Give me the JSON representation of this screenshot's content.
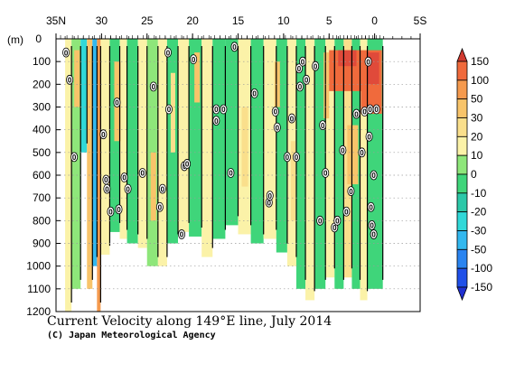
{
  "chart_data": {
    "type": "heatmap",
    "title": "Current Velocity along 149°E line, July 2014",
    "credit": "(C) Japan Meteorological Agency",
    "x_axis": {
      "label_note": "latitude",
      "range": [
        35,
        -5
      ],
      "ticks": [
        {
          "value": 35,
          "label": "35N"
        },
        {
          "value": 30,
          "label": "30"
        },
        {
          "value": 25,
          "label": "25"
        },
        {
          "value": 20,
          "label": "20"
        },
        {
          "value": 15,
          "label": "15"
        },
        {
          "value": 10,
          "label": "10"
        },
        {
          "value": 5,
          "label": "5"
        },
        {
          "value": 0,
          "label": "0"
        },
        {
          "value": -5,
          "label": "5S"
        }
      ]
    },
    "y_axis": {
      "unit_label": "(m)",
      "range": [
        0,
        1200
      ],
      "ticks": [
        {
          "value": 0,
          "label": "0"
        },
        {
          "value": 100,
          "label": "100"
        },
        {
          "value": 200,
          "label": "200"
        },
        {
          "value": 300,
          "label": "300"
        },
        {
          "value": 400,
          "label": "400"
        },
        {
          "value": 500,
          "label": "500"
        },
        {
          "value": 600,
          "label": "600"
        },
        {
          "value": 700,
          "label": "700"
        },
        {
          "value": 800,
          "label": "800"
        },
        {
          "value": 900,
          "label": "900"
        },
        {
          "value": 1000,
          "label": "1000"
        },
        {
          "value": 1100,
          "label": "1100"
        },
        {
          "value": 1200,
          "label": "1200"
        }
      ]
    },
    "colorbar": {
      "levels": [
        {
          "label": "150",
          "color": "#e04a3a"
        },
        {
          "label": "100",
          "color": "#f06a3c"
        },
        {
          "label": "50",
          "color": "#f59a4e"
        },
        {
          "label": "30",
          "color": "#f8c46a"
        },
        {
          "label": "20",
          "color": "#fadf8c"
        },
        {
          "label": "10",
          "color": "#fbf2a8"
        },
        {
          "label": "0",
          "color": "#8ee67a"
        },
        {
          "label": "-10",
          "color": "#3fd57a"
        },
        {
          "label": "-20",
          "color": "#2bc8a8"
        },
        {
          "label": "-30",
          "color": "#30d8d8"
        },
        {
          "label": "-50",
          "color": "#32b8ef"
        },
        {
          "label": "-100",
          "color": "#2a84f0"
        },
        {
          "label": "-150",
          "color": "#2050e8"
        }
      ],
      "top_arrow_color": "#d03a30",
      "bottom_arrow_color": "#2030d0"
    },
    "bands": [
      {
        "lat": 34.0,
        "lat2": 33.3,
        "top": 0,
        "bottom": 1200,
        "v": 3
      },
      {
        "lat": 33.3,
        "lat2": 32.3,
        "top": 0,
        "bottom": 1100,
        "v": -8
      },
      {
        "lat": 32.3,
        "lat2": 31.6,
        "top": 0,
        "bottom": 500,
        "v": -40
      },
      {
        "lat": 31.6,
        "lat2": 31.0,
        "top": 0,
        "bottom": 1100,
        "v": 25
      },
      {
        "lat": 31.0,
        "lat2": 30.5,
        "top": 0,
        "bottom": 1000,
        "v": -60
      },
      {
        "lat": 30.5,
        "lat2": 30.1,
        "top": 0,
        "bottom": 1200,
        "v": 40
      },
      {
        "lat": 30.1,
        "lat2": 29.1,
        "top": 0,
        "bottom": 950,
        "v": 8
      },
      {
        "lat": 29.1,
        "lat2": 28.0,
        "top": 0,
        "bottom": 850,
        "v": -12
      },
      {
        "lat": 28.0,
        "lat2": 27.2,
        "top": 0,
        "bottom": 880,
        "v": 5
      },
      {
        "lat": 27.2,
        "lat2": 26.0,
        "top": 0,
        "bottom": 900,
        "v": -15
      },
      {
        "lat": 26.0,
        "lat2": 25.0,
        "top": 0,
        "bottom": 920,
        "v": 6
      },
      {
        "lat": 25.0,
        "lat2": 23.8,
        "top": 0,
        "bottom": 1000,
        "v": -10
      },
      {
        "lat": 23.8,
        "lat2": 22.8,
        "top": 0,
        "bottom": 1000,
        "v": 4
      },
      {
        "lat": 22.8,
        "lat2": 21.6,
        "top": 0,
        "bottom": 900,
        "v": -14
      },
      {
        "lat": 21.6,
        "lat2": 20.4,
        "top": 0,
        "bottom": 850,
        "v": 7
      },
      {
        "lat": 20.4,
        "lat2": 19.0,
        "top": 0,
        "bottom": 870,
        "v": -16
      },
      {
        "lat": 19.0,
        "lat2": 17.8,
        "top": 0,
        "bottom": 960,
        "v": 5
      },
      {
        "lat": 17.8,
        "lat2": 16.4,
        "top": 0,
        "bottom": 880,
        "v": -12
      },
      {
        "lat": 16.4,
        "lat2": 15.0,
        "top": 0,
        "bottom": 820,
        "v": -18
      },
      {
        "lat": 15.0,
        "lat2": 13.6,
        "top": 0,
        "bottom": 860,
        "v": 6
      },
      {
        "lat": 13.6,
        "lat2": 12.2,
        "top": 0,
        "bottom": 900,
        "v": -12
      },
      {
        "lat": 12.2,
        "lat2": 10.8,
        "top": 0,
        "bottom": 880,
        "v": 5
      },
      {
        "lat": 10.8,
        "lat2": 9.6,
        "top": 0,
        "bottom": 940,
        "v": -14
      },
      {
        "lat": 9.6,
        "lat2": 8.6,
        "top": 0,
        "bottom": 1000,
        "v": 8
      },
      {
        "lat": 8.6,
        "lat2": 7.6,
        "top": 0,
        "bottom": 1100,
        "v": -16
      },
      {
        "lat": 7.6,
        "lat2": 6.6,
        "top": 0,
        "bottom": 1150,
        "v": 6
      },
      {
        "lat": 6.6,
        "lat2": 5.4,
        "top": 0,
        "bottom": 1100,
        "v": -12
      },
      {
        "lat": 5.4,
        "lat2": 4.4,
        "top": 0,
        "bottom": 1050,
        "v": 7
      },
      {
        "lat": 4.4,
        "lat2": 3.4,
        "top": 0,
        "bottom": 1100,
        "v": -14
      },
      {
        "lat": 3.4,
        "lat2": 2.5,
        "top": 0,
        "bottom": 1050,
        "v": 10
      },
      {
        "lat": 2.5,
        "lat2": 1.6,
        "top": 0,
        "bottom": 1100,
        "v": -12
      },
      {
        "lat": 1.6,
        "lat2": 0.8,
        "top": 0,
        "bottom": 1150,
        "v": 6
      },
      {
        "lat": 0.8,
        "lat2": -0.9,
        "top": 0,
        "bottom": 1100,
        "v": -15
      }
    ],
    "patches": [
      {
        "lat": 33.0,
        "lat2": 32.4,
        "top": 50,
        "bottom": 300,
        "v": 25
      },
      {
        "lat": 28.6,
        "lat2": 27.9,
        "top": 100,
        "bottom": 450,
        "v": 25
      },
      {
        "lat": 22.4,
        "lat2": 21.9,
        "top": 150,
        "bottom": 500,
        "v": 15
      },
      {
        "lat": 19.8,
        "lat2": 19.2,
        "top": 60,
        "bottom": 280,
        "v": 25
      },
      {
        "lat": 14.6,
        "lat2": 13.9,
        "top": 300,
        "bottom": 650,
        "v": 15
      },
      {
        "lat": 11.0,
        "lat2": 10.4,
        "top": 100,
        "bottom": 300,
        "v": 20
      },
      {
        "lat": 9.2,
        "lat2": 8.7,
        "top": 450,
        "bottom": 800,
        "v": 15
      },
      {
        "lat": 5.6,
        "lat2": 5.0,
        "top": 60,
        "bottom": 350,
        "v": 25
      },
      {
        "lat": 5.0,
        "lat2": 1.5,
        "top": 50,
        "bottom": 230,
        "v": 70
      },
      {
        "lat": 4.0,
        "lat2": 2.0,
        "top": 50,
        "bottom": 120,
        "v": 120
      },
      {
        "lat": 1.5,
        "lat2": -0.8,
        "top": 50,
        "bottom": 330,
        "v": 60
      },
      {
        "lat": 0.8,
        "lat2": -0.5,
        "top": 60,
        "bottom": 200,
        "v": 110
      },
      {
        "lat": 3.0,
        "lat2": 1.8,
        "top": 380,
        "bottom": 640,
        "v": 25
      },
      {
        "lat": 24.6,
        "lat2": 24.0,
        "top": 500,
        "bottom": 800,
        "v": 20
      }
    ],
    "zero_labels": [
      {
        "lat": 33.9,
        "depth": 60
      },
      {
        "lat": 33.5,
        "depth": 180
      },
      {
        "lat": 33.0,
        "depth": 520
      },
      {
        "lat": 29.8,
        "depth": 420
      },
      {
        "lat": 29.5,
        "depth": 620
      },
      {
        "lat": 29.4,
        "depth": 660
      },
      {
        "lat": 29.0,
        "depth": 760
      },
      {
        "lat": 28.3,
        "depth": 280
      },
      {
        "lat": 28.1,
        "depth": 750
      },
      {
        "lat": 27.5,
        "depth": 610
      },
      {
        "lat": 27.1,
        "depth": 660
      },
      {
        "lat": 25.5,
        "depth": 590
      },
      {
        "lat": 24.3,
        "depth": 210
      },
      {
        "lat": 23.6,
        "depth": 740
      },
      {
        "lat": 23.3,
        "depth": 660
      },
      {
        "lat": 22.7,
        "depth": 60
      },
      {
        "lat": 22.6,
        "depth": 310
      },
      {
        "lat": 21.2,
        "depth": 860
      },
      {
        "lat": 20.9,
        "depth": 560
      },
      {
        "lat": 20.6,
        "depth": 550
      },
      {
        "lat": 19.9,
        "depth": 90
      },
      {
        "lat": 17.4,
        "depth": 310
      },
      {
        "lat": 17.4,
        "depth": 360
      },
      {
        "lat": 16.6,
        "depth": 310
      },
      {
        "lat": 15.8,
        "depth": 590
      },
      {
        "lat": 15.4,
        "depth": 35
      },
      {
        "lat": 13.2,
        "depth": 240
      },
      {
        "lat": 11.6,
        "depth": 720
      },
      {
        "lat": 11.5,
        "depth": 690
      },
      {
        "lat": 10.9,
        "depth": 320
      },
      {
        "lat": 10.7,
        "depth": 390
      },
      {
        "lat": 9.6,
        "depth": 520
      },
      {
        "lat": 9.1,
        "depth": 350
      },
      {
        "lat": 8.6,
        "depth": 520
      },
      {
        "lat": 8.3,
        "depth": 130
      },
      {
        "lat": 8.2,
        "depth": 210
      },
      {
        "lat": 7.9,
        "depth": 100
      },
      {
        "lat": 7.5,
        "depth": 180
      },
      {
        "lat": 6.5,
        "depth": 120
      },
      {
        "lat": 6.0,
        "depth": 800
      },
      {
        "lat": 5.7,
        "depth": 380
      },
      {
        "lat": 5.4,
        "depth": 590
      },
      {
        "lat": 4.4,
        "depth": 830
      },
      {
        "lat": 4.1,
        "depth": 800
      },
      {
        "lat": 3.5,
        "depth": 490
      },
      {
        "lat": 3.1,
        "depth": 760
      },
      {
        "lat": 2.6,
        "depth": 670
      },
      {
        "lat": 2.0,
        "depth": 330
      },
      {
        "lat": 1.4,
        "depth": 500
      },
      {
        "lat": 1.1,
        "depth": 320
      },
      {
        "lat": 0.7,
        "depth": 100
      },
      {
        "lat": 0.6,
        "depth": 430
      },
      {
        "lat": 0.5,
        "depth": 310
      },
      {
        "lat": 0.4,
        "depth": 740
      },
      {
        "lat": 0.3,
        "depth": 820
      },
      {
        "lat": 0.1,
        "depth": 600
      },
      {
        "lat": -0.2,
        "depth": 310
      },
      {
        "lat": 0.1,
        "depth": 860
      }
    ],
    "grid": {
      "horizontal_dotted": true,
      "depths": [
        100,
        200,
        300,
        400,
        500,
        600,
        700,
        800,
        900,
        1000,
        1100
      ]
    }
  }
}
